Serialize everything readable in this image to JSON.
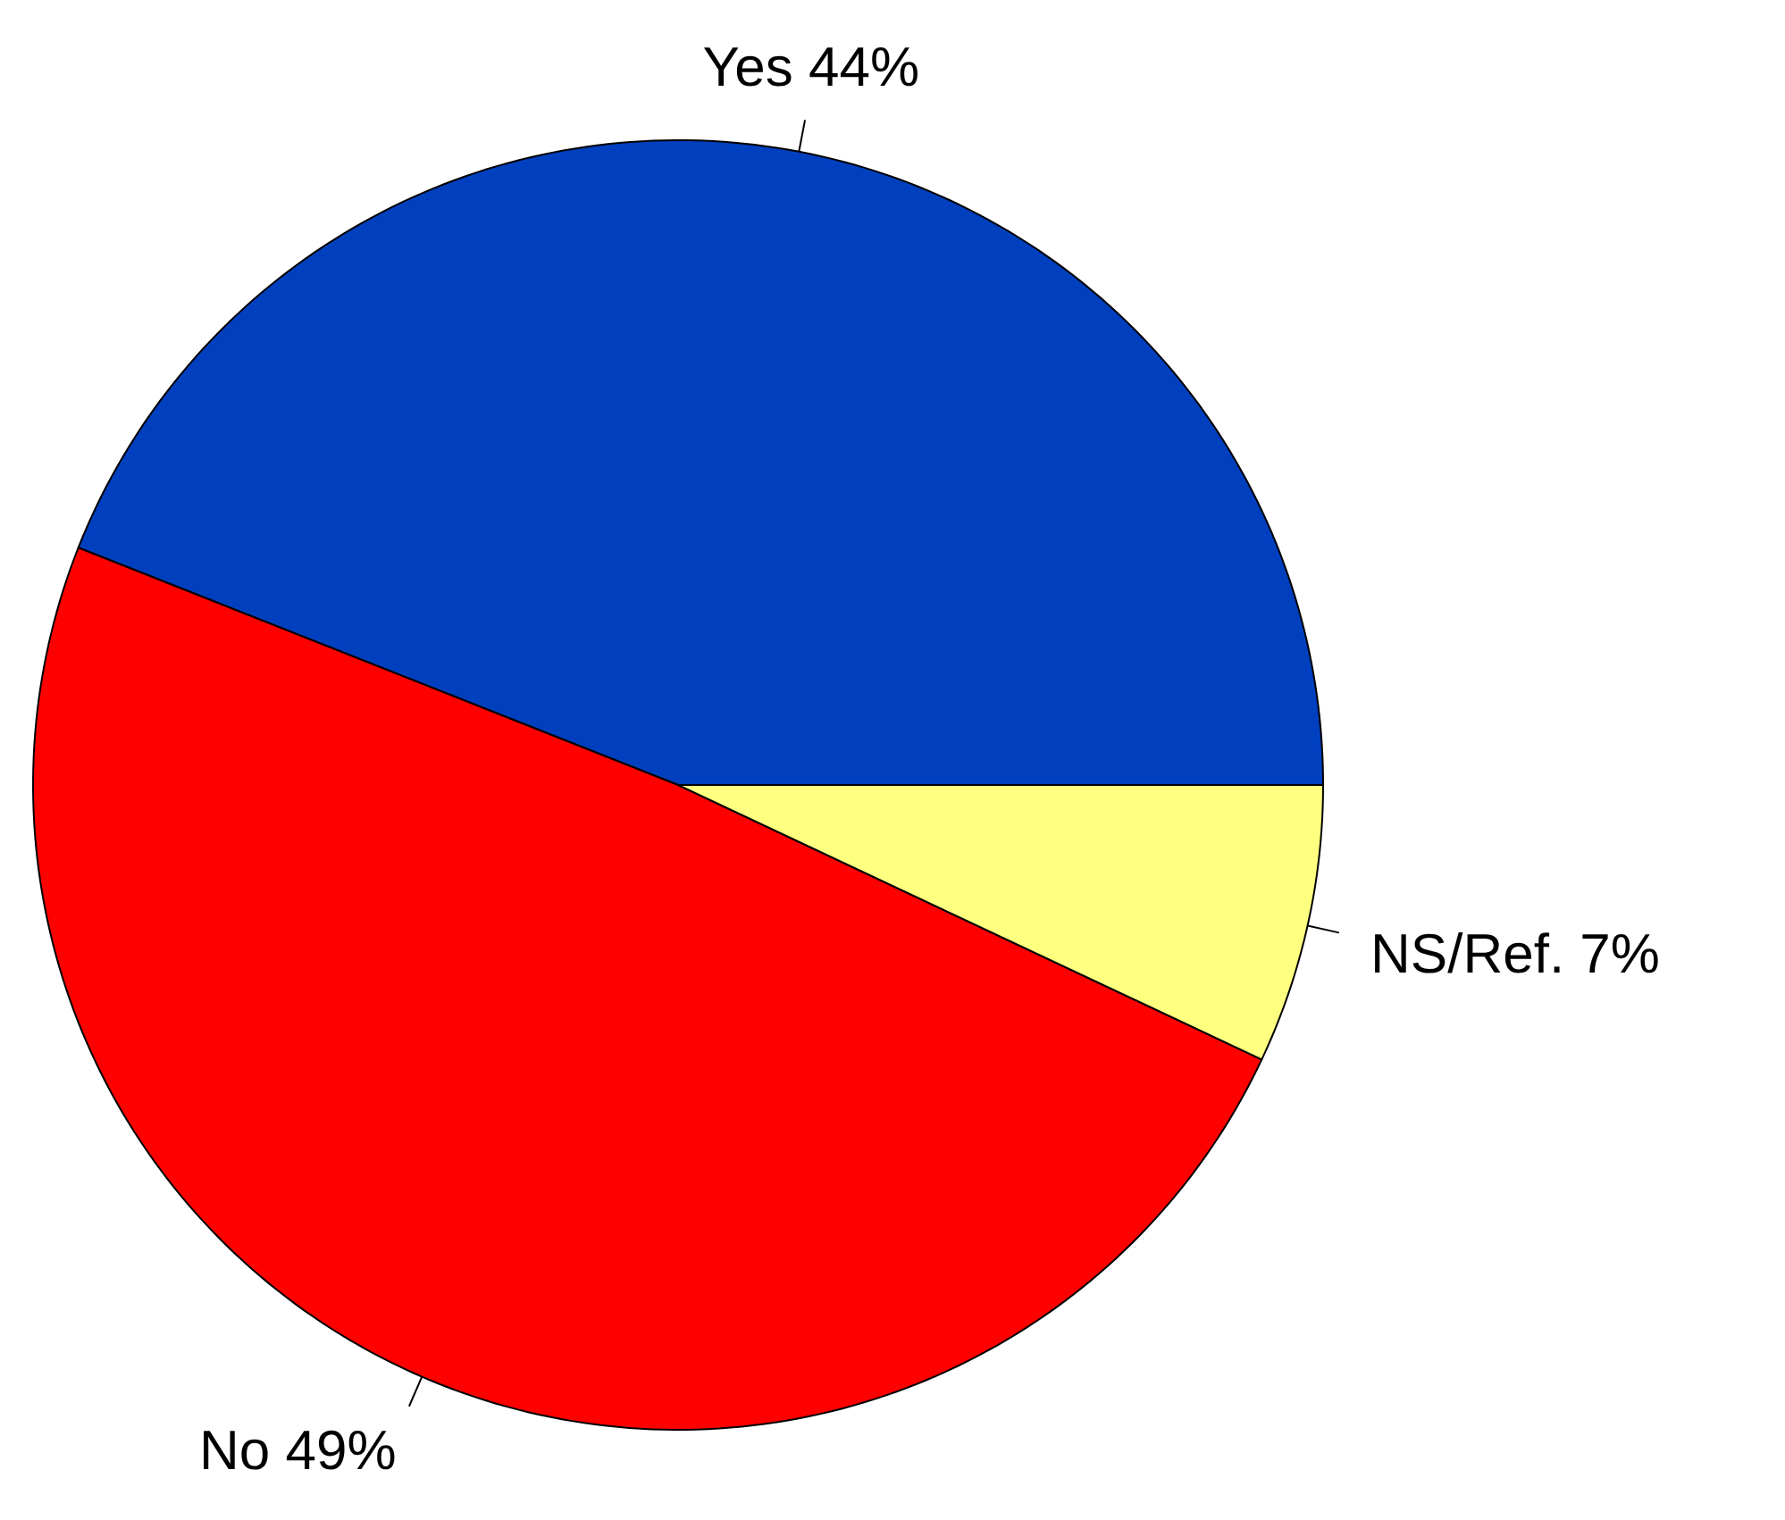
{
  "chart_data": {
    "type": "pie",
    "categories": [
      "Yes",
      "No",
      "NS/Ref."
    ],
    "values": [
      44,
      49,
      7
    ],
    "colors": [
      "#0040bf",
      "#ff0000",
      "#ffff80"
    ],
    "value_labels": [
      "44%",
      "49%",
      "7%"
    ]
  }
}
